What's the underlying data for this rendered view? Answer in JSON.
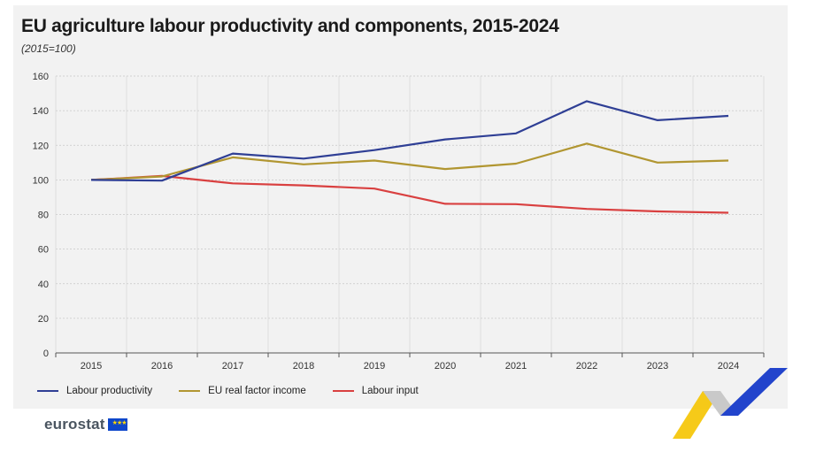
{
  "title": "EU agriculture labour productivity and components, 2015-2024",
  "subtitle": "(2015=100)",
  "brand": "eurostat",
  "chart_data": {
    "type": "line",
    "x": [
      "2015",
      "2016",
      "2017",
      "2018",
      "2019",
      "2020",
      "2021",
      "2022",
      "2023",
      "2024"
    ],
    "ylim": [
      0,
      160
    ],
    "yticks": [
      0,
      20,
      40,
      60,
      80,
      100,
      120,
      140,
      160
    ],
    "grid": true,
    "legend_position": "bottom-left",
    "series": [
      {
        "name": "Labour productivity",
        "color": "#2f3f95",
        "values": [
          100,
          99.6,
          115.2,
          112.3,
          117.2,
          123.4,
          126.9,
          145.5,
          134.5,
          137.0
        ]
      },
      {
        "name": "EU real factor income",
        "color": "#b19631",
        "values": [
          100,
          102.0,
          113.0,
          109.0,
          111.2,
          106.3,
          109.4,
          121.0,
          110.0,
          111.2
        ]
      },
      {
        "name": "Labour input",
        "color": "#d94040",
        "values": [
          100,
          102.3,
          98.0,
          96.8,
          95.0,
          86.2,
          86.0,
          83.2,
          81.8,
          81.0
        ]
      }
    ]
  }
}
